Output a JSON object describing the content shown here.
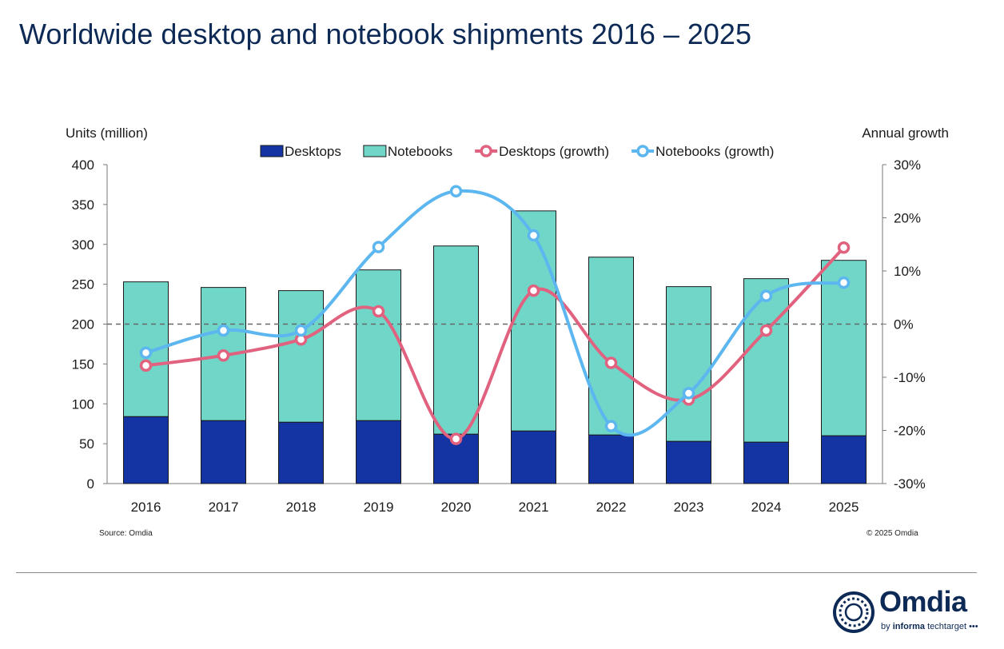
{
  "title": "Worldwide desktop and notebook shipments 2016 – 2025",
  "source": "Source: Omdia",
  "copyright": "© 2025 Omdia",
  "logo": {
    "word": "Omdia",
    "sub_prefix": "by",
    "sub_brand": "informa",
    "sub_rest": "techtarget"
  },
  "chart_data": {
    "type": "bar",
    "stacked": true,
    "categories": [
      "2016",
      "2017",
      "2018",
      "2019",
      "2020",
      "2021",
      "2022",
      "2023",
      "2024",
      "2025"
    ],
    "ylabel": "Units (million)",
    "ylim": [
      0,
      400
    ],
    "yticks": [
      0,
      50,
      100,
      150,
      200,
      250,
      300,
      350,
      400
    ],
    "y2label": "Annual growth",
    "y2lim": [
      -30,
      30
    ],
    "y2ticks": [
      -30,
      -20,
      -10,
      0,
      10,
      20,
      30
    ],
    "y2tick_labels": [
      "-30%",
      "-20%",
      "-10%",
      "0%",
      "10%",
      "20%",
      "30%"
    ],
    "legend_position": "top",
    "series": [
      {
        "name": "Desktops",
        "type": "bar",
        "axis": "left",
        "color": "#1434a4",
        "values": [
          84,
          79,
          77,
          79,
          62,
          66,
          61,
          53,
          52,
          60
        ]
      },
      {
        "name": "Notebooks",
        "type": "bar",
        "axis": "left",
        "color": "#6fd6c8",
        "values": [
          169,
          167,
          165,
          189,
          236,
          276,
          223,
          194,
          205,
          220
        ]
      },
      {
        "name": "Desktops (growth)",
        "type": "line",
        "axis": "right",
        "color": "#e0627f",
        "values": [
          -7.8,
          -5.9,
          -2.9,
          2.4,
          -21.6,
          6.3,
          -7.3,
          -14.2,
          -1.2,
          14.4
        ]
      },
      {
        "name": "Notebooks (growth)",
        "type": "line",
        "axis": "right",
        "color": "#5cb6ef",
        "values": [
          -5.4,
          -1.2,
          -1.2,
          14.5,
          25.0,
          16.7,
          -19.2,
          -13.0,
          5.3,
          7.8
        ]
      }
    ]
  }
}
